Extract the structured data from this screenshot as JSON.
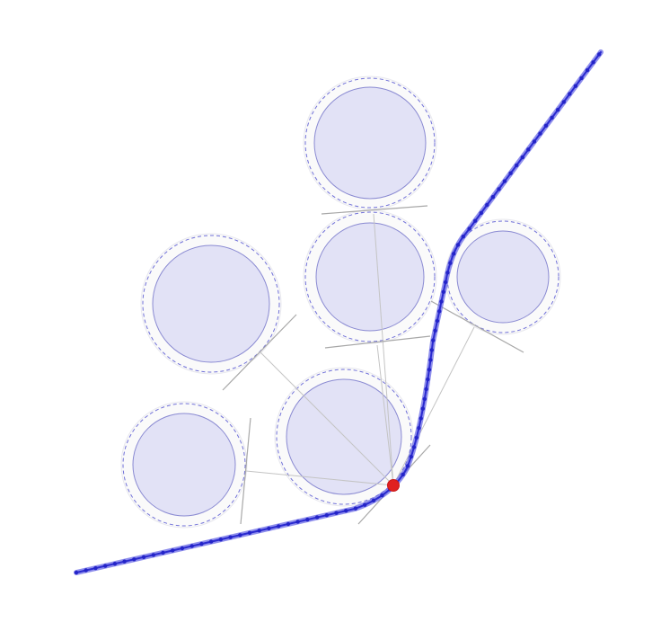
{
  "colors": {
    "background": "#ffffff",
    "obstacle_fill": "#e2e2f6",
    "margin_dash": "#7070d8",
    "path": "#2a2ad0",
    "path_glow": "#6a6ae6",
    "robot": "#e02020",
    "tangent_lines": "#a8a8a8"
  },
  "icons": {
    "robot": "red-dot-marker"
  },
  "obstacles": [
    {
      "id": "top-center"
    },
    {
      "id": "middle-center"
    },
    {
      "id": "middle-right"
    },
    {
      "id": "middle-left"
    },
    {
      "id": "bottom-center"
    },
    {
      "id": "bottom-left"
    }
  ]
}
